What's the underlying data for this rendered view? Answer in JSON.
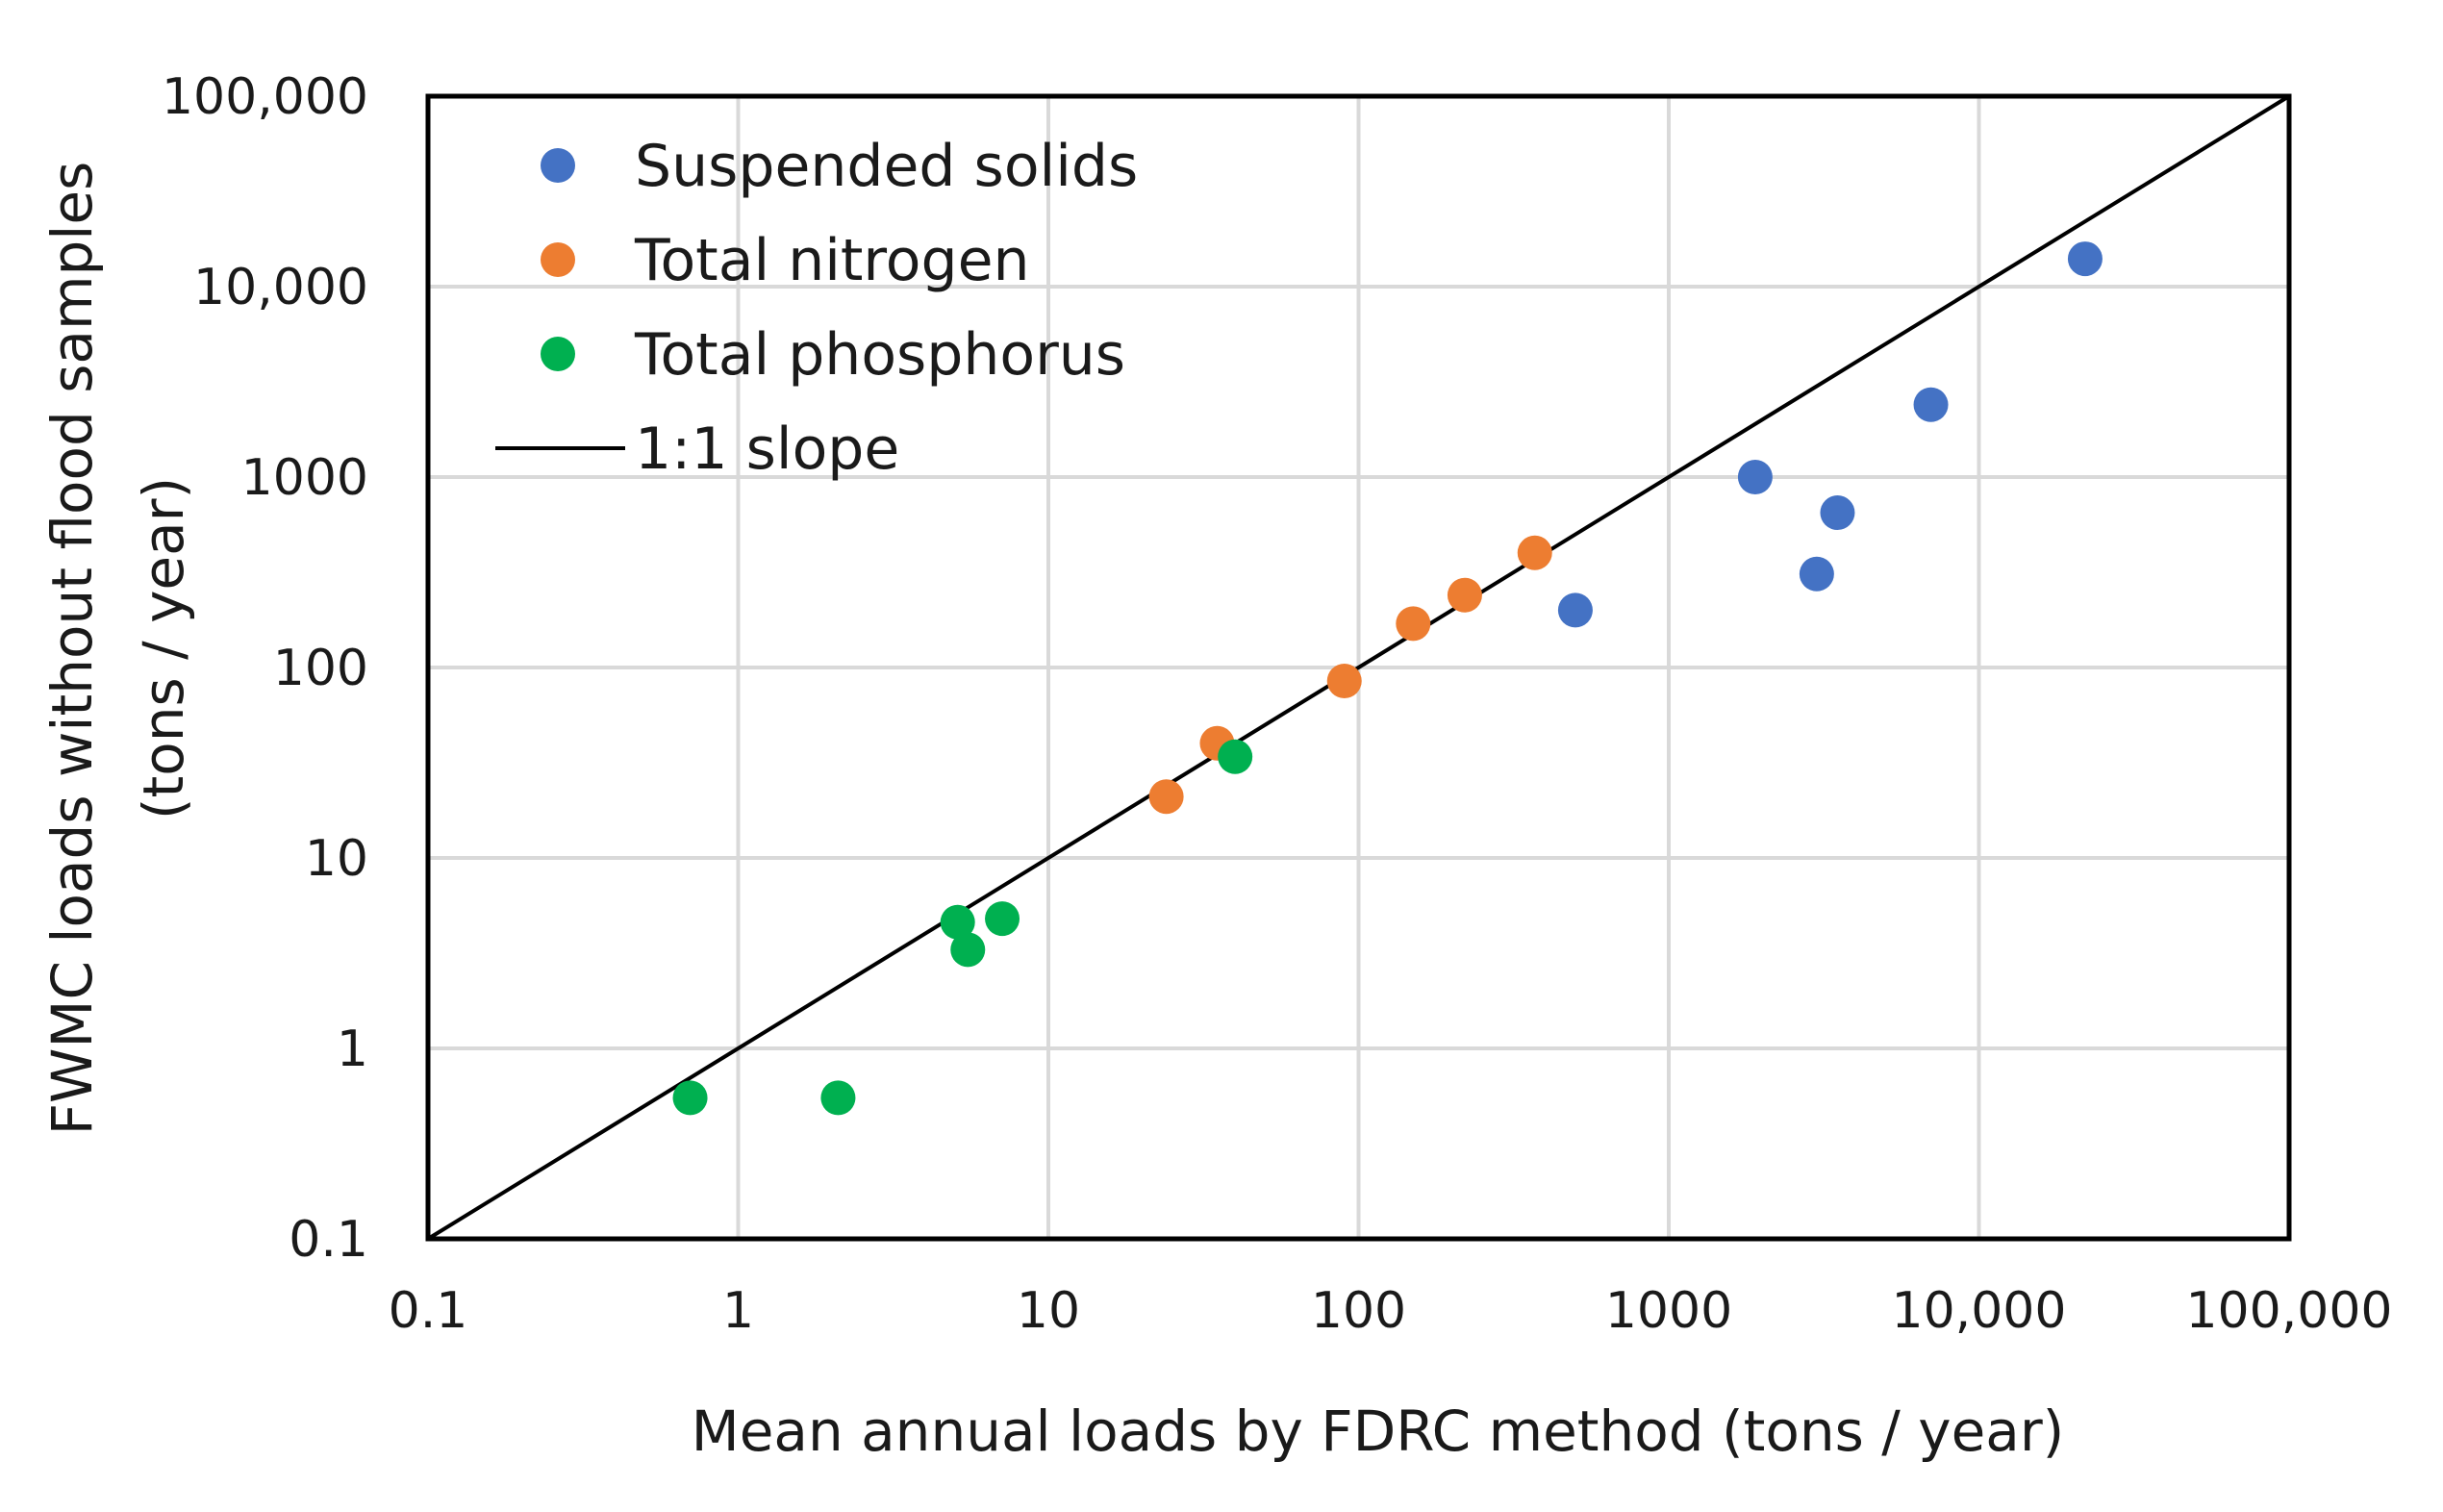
{
  "chart_data": {
    "type": "scatter",
    "title": "",
    "xlabel": "Mean annual loads by FDRC method (tons / year)",
    "ylabel_lines": [
      "FWMC loads without flood samples",
      "(tons / year)"
    ],
    "xscale": "log",
    "yscale": "log",
    "xlim": [
      0.1,
      100000
    ],
    "ylim": [
      0.1,
      100000
    ],
    "grid": true,
    "legend_position": "top-left",
    "x_ticks": [
      0.1,
      1,
      10,
      100,
      1000,
      10000,
      100000
    ],
    "x_tick_labels": [
      "0.1",
      "1",
      "10",
      "100",
      "1000",
      "10,000",
      "100,000"
    ],
    "y_ticks": [
      0.1,
      1,
      10,
      100,
      1000,
      10000,
      100000
    ],
    "y_tick_labels": [
      "0.1",
      "1",
      "10",
      "100",
      "1000",
      "10,000",
      "100,000"
    ],
    "series": [
      {
        "name": "Suspended solids",
        "color": "#4472C4",
        "points": [
          [
            500,
            200
          ],
          [
            1900,
            1000
          ],
          [
            3000,
            310
          ],
          [
            3500,
            650
          ],
          [
            7000,
            2400
          ],
          [
            22000,
            14000
          ]
        ]
      },
      {
        "name": "Total nitrogen",
        "color": "#ED7D31",
        "points": [
          [
            24,
            21
          ],
          [
            35,
            40
          ],
          [
            90,
            85
          ],
          [
            150,
            170
          ],
          [
            220,
            240
          ],
          [
            370,
            400
          ]
        ]
      },
      {
        "name": "Total phosphorus",
        "color": "#00B050",
        "points": [
          [
            0.7,
            0.55
          ],
          [
            2.1,
            0.55
          ],
          [
            5.1,
            4.6
          ],
          [
            5.5,
            3.3
          ],
          [
            7.1,
            4.8
          ],
          [
            40,
            34
          ]
        ]
      }
    ],
    "reference_line": {
      "name": "1:1 slope",
      "color": "#000000",
      "from": [
        0.1,
        0.1
      ],
      "to": [
        100000,
        100000
      ]
    }
  }
}
